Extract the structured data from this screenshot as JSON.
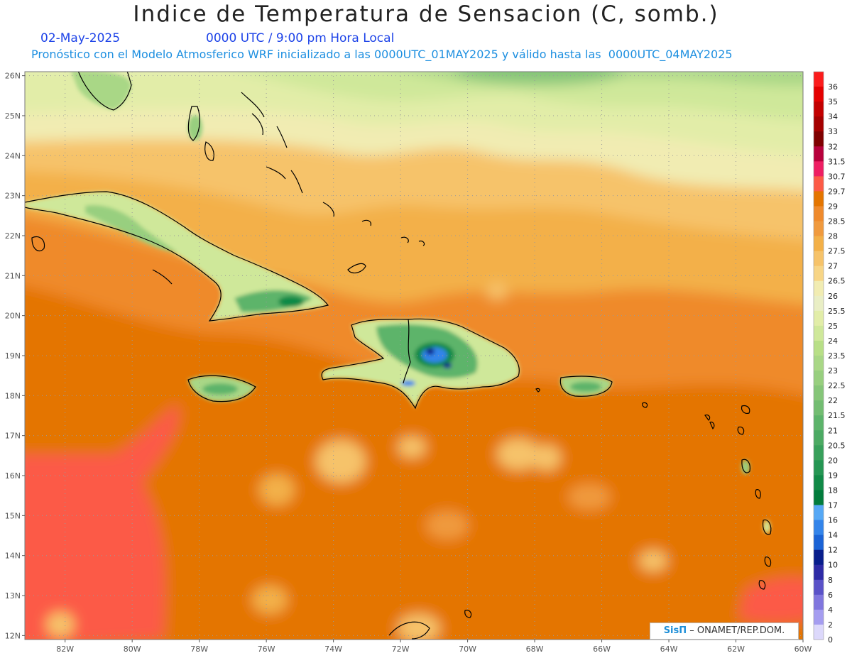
{
  "title": "Indice de Temperatura de Sensacion (C, somb.)",
  "date": "02-May-2025",
  "time": "0000 UTC / 9:00 pm Hora Local",
  "forecast_note": "Pronóstico con el Modelo Atmosferico WRF inicializado a las 0000UTC_01MAY2025 y válido hasta las  0000UTC_04MAY2025",
  "credit": {
    "logo": "SisΠ",
    "text": "– ONAMET/REP.DOM."
  },
  "map": {
    "region": "Caribbean",
    "lon_range": [
      -83.2,
      -60
    ],
    "lat_range": [
      11.9,
      26.1
    ],
    "lon_ticks": [
      {
        "value": -82,
        "label": "82W"
      },
      {
        "value": -80,
        "label": "80W"
      },
      {
        "value": -78,
        "label": "78W"
      },
      {
        "value": -76,
        "label": "76W"
      },
      {
        "value": -74,
        "label": "74W"
      },
      {
        "value": -72,
        "label": "72W"
      },
      {
        "value": -70,
        "label": "70W"
      },
      {
        "value": -68,
        "label": "68W"
      },
      {
        "value": -66,
        "label": "66W"
      },
      {
        "value": -64,
        "label": "64W"
      },
      {
        "value": -62,
        "label": "62W"
      },
      {
        "value": -60,
        "label": "60W"
      }
    ],
    "lat_ticks": [
      {
        "value": 26,
        "label": "26N"
      },
      {
        "value": 25,
        "label": "25N"
      },
      {
        "value": 24,
        "label": "24N"
      },
      {
        "value": 23,
        "label": "23N"
      },
      {
        "value": 22,
        "label": "22N"
      },
      {
        "value": 21,
        "label": "21N"
      },
      {
        "value": 20,
        "label": "20N"
      },
      {
        "value": 19,
        "label": "19N"
      },
      {
        "value": 18,
        "label": "18N"
      },
      {
        "value": 17,
        "label": "17N"
      },
      {
        "value": 16,
        "label": "16N"
      },
      {
        "value": 15,
        "label": "15N"
      },
      {
        "value": 14,
        "label": "14N"
      },
      {
        "value": 13,
        "label": "13N"
      },
      {
        "value": 12,
        "label": "12N"
      }
    ],
    "gridlines": true
  },
  "legend": {
    "placement": "right",
    "levels": [
      {
        "label": "36",
        "color": "#fb1c1c"
      },
      {
        "label": "35",
        "color": "#e40000"
      },
      {
        "label": "34",
        "color": "#c30000"
      },
      {
        "label": "33",
        "color": "#a50000"
      },
      {
        "label": "32",
        "color": "#7f0000"
      },
      {
        "label": "31.5",
        "color": "#b7003c"
      },
      {
        "label": "30.7",
        "color": "#ee1e63"
      },
      {
        "label": "29.7",
        "color": "#fc5a46"
      },
      {
        "label": "29",
        "color": "#e47500"
      },
      {
        "label": "28.5",
        "color": "#ef8a2c"
      },
      {
        "label": "28",
        "color": "#f09a3e"
      },
      {
        "label": "27.5",
        "color": "#f3b048"
      },
      {
        "label": "27",
        "color": "#f6c36a"
      },
      {
        "label": "26.5",
        "color": "#f7d586"
      },
      {
        "label": "26",
        "color": "#f1ecb2"
      },
      {
        "label": "25.5",
        "color": "#e9eec5"
      },
      {
        "label": "25",
        "color": "#e2eda8"
      },
      {
        "label": "24",
        "color": "#cfe89a"
      },
      {
        "label": "23.5",
        "color": "#b8df87"
      },
      {
        "label": "23",
        "color": "#a9d786"
      },
      {
        "label": "22.5",
        "color": "#98cf7f"
      },
      {
        "label": "22",
        "color": "#86c679"
      },
      {
        "label": "21.5",
        "color": "#73bd72"
      },
      {
        "label": "21",
        "color": "#5db46b"
      },
      {
        "label": "20.5",
        "color": "#4caa63"
      },
      {
        "label": "20",
        "color": "#38a05b"
      },
      {
        "label": "19",
        "color": "#259653"
      },
      {
        "label": "18",
        "color": "#118a47"
      },
      {
        "label": "17",
        "color": "#027c3c"
      },
      {
        "label": "16",
        "color": "#56a8f5"
      },
      {
        "label": "14",
        "color": "#3384ea"
      },
      {
        "label": "12",
        "color": "#1a63d6"
      },
      {
        "label": "10",
        "color": "#081e8c"
      },
      {
        "label": "8",
        "color": "#2e2ba6"
      },
      {
        "label": "6",
        "color": "#5a52c8"
      },
      {
        "label": "4",
        "color": "#8076de"
      },
      {
        "label": "2",
        "color": "#a59df0"
      },
      {
        "label": "0",
        "color": "#dcd8fb"
      }
    ]
  }
}
